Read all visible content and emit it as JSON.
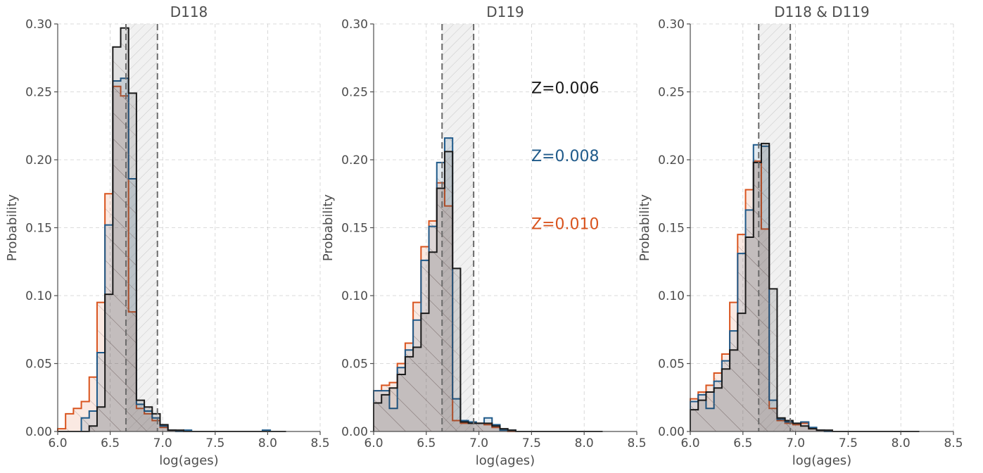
{
  "colors": {
    "z006": "#1a1a1a",
    "z008": "#1f5a8a",
    "z010": "#d9541e",
    "axis": "#4d4d4d",
    "grid": "#cfcfcf",
    "band": "#e6e6e6"
  },
  "chart_data": [
    {
      "type": "histogram",
      "title": "D118",
      "xlabel": "log(ages)",
      "ylabel": "Probability",
      "xlim": [
        6.0,
        8.5
      ],
      "ylim": [
        0.0,
        0.3
      ],
      "xticks": [
        "6.0",
        "6.5",
        "7.0",
        "7.5",
        "8.0",
        "8.5"
      ],
      "yticks": [
        "0.00",
        "0.05",
        "0.10",
        "0.15",
        "0.20",
        "0.25",
        "0.30"
      ],
      "grid": true,
      "band": [
        6.65,
        6.95
      ],
      "bin_edges": [
        6.0,
        6.075,
        6.15,
        6.225,
        6.3,
        6.375,
        6.45,
        6.525,
        6.6,
        6.675,
        6.75,
        6.825,
        6.9,
        6.975,
        7.05,
        7.125,
        7.2,
        7.275,
        7.35,
        7.425,
        7.5,
        7.575,
        7.65,
        7.725,
        7.8,
        7.875,
        7.95,
        8.025,
        8.1,
        8.175
      ],
      "series": [
        {
          "name": "Z=0.010",
          "color_key": "z010",
          "values": [
            0.002,
            0.013,
            0.017,
            0.022,
            0.04,
            0.095,
            0.175,
            0.254,
            0.247,
            0.088,
            0.017,
            0.013,
            0.008,
            0.003,
            0.001,
            0.0,
            0.0,
            0.0,
            0.0,
            0.0,
            0.0,
            0.0,
            0.0,
            0.0,
            0.0,
            0.0,
            0.0,
            0.0,
            0.0
          ]
        },
        {
          "name": "Z=0.008",
          "color_key": "z008",
          "values": [
            0.0,
            0.0,
            0.0,
            0.01,
            0.015,
            0.058,
            0.152,
            0.258,
            0.26,
            0.186,
            0.02,
            0.015,
            0.01,
            0.004,
            0.001,
            0.0,
            0.001,
            0.0,
            0.0,
            0.0,
            0.0,
            0.0,
            0.0,
            0.0,
            0.0,
            0.0,
            0.001,
            0.0,
            0.0
          ]
        },
        {
          "name": "Z=0.006",
          "color_key": "z006",
          "values": [
            0.0,
            0.0,
            0.0,
            0.0,
            0.004,
            0.018,
            0.101,
            0.283,
            0.297,
            0.249,
            0.023,
            0.018,
            0.013,
            0.005,
            0.001,
            0.001,
            0.0,
            0.0,
            0.0,
            0.0,
            0.0,
            0.0,
            0.0,
            0.0,
            0.0,
            0.0,
            0.0,
            0.0,
            0.0
          ]
        }
      ]
    },
    {
      "type": "histogram",
      "title": "D119",
      "xlabel": "log(ages)",
      "ylabel": "Probability",
      "xlim": [
        6.0,
        8.5
      ],
      "ylim": [
        0.0,
        0.3
      ],
      "xticks": [
        "6.0",
        "6.5",
        "7.0",
        "7.5",
        "8.0",
        "8.5"
      ],
      "yticks": [
        "0.00",
        "0.05",
        "0.10",
        "0.15",
        "0.20",
        "0.25",
        "0.30"
      ],
      "grid": true,
      "band": [
        6.65,
        6.95
      ],
      "legend": [
        {
          "text": "Z=0.006",
          "color_key": "z006"
        },
        {
          "text": "Z=0.008",
          "color_key": "z008"
        },
        {
          "text": "Z=0.010",
          "color_key": "z010"
        }
      ],
      "bin_edges": [
        6.0,
        6.075,
        6.15,
        6.225,
        6.3,
        6.375,
        6.45,
        6.525,
        6.6,
        6.675,
        6.75,
        6.825,
        6.9,
        6.975,
        7.05,
        7.125,
        7.2,
        7.275,
        7.35,
        7.425,
        7.5,
        7.575,
        7.65,
        7.725,
        7.8,
        7.875,
        7.95,
        8.025,
        8.1,
        8.175
      ],
      "series": [
        {
          "name": "Z=0.010",
          "color_key": "z010",
          "values": [
            0.03,
            0.034,
            0.036,
            0.05,
            0.065,
            0.095,
            0.136,
            0.155,
            0.183,
            0.166,
            0.008,
            0.006,
            0.006,
            0.006,
            0.005,
            0.003,
            0.001,
            0.0,
            0.0,
            0.0,
            0.0,
            0.0,
            0.0,
            0.0,
            0.0,
            0.0,
            0.0,
            0.0,
            0.0
          ]
        },
        {
          "name": "Z=0.008",
          "color_key": "z008",
          "values": [
            0.03,
            0.03,
            0.017,
            0.047,
            0.06,
            0.082,
            0.126,
            0.151,
            0.198,
            0.216,
            0.024,
            0.008,
            0.007,
            0.006,
            0.01,
            0.005,
            0.001,
            0.001,
            0.0,
            0.0,
            0.0,
            0.0,
            0.0,
            0.0,
            0.0,
            0.0,
            0.0,
            0.0,
            0.0
          ]
        },
        {
          "name": "Z=0.006",
          "color_key": "z006",
          "values": [
            0.021,
            0.027,
            0.032,
            0.042,
            0.055,
            0.062,
            0.087,
            0.132,
            0.179,
            0.206,
            0.12,
            0.007,
            0.006,
            0.006,
            0.006,
            0.004,
            0.002,
            0.001,
            0.0,
            0.0,
            0.0,
            0.0,
            0.0,
            0.0,
            0.0,
            0.0,
            0.0,
            0.0,
            0.0
          ]
        }
      ]
    },
    {
      "type": "histogram",
      "title": "D118 & D119",
      "xlabel": "log(ages)",
      "ylabel": "Probability",
      "xlim": [
        6.0,
        8.5
      ],
      "ylim": [
        0.0,
        0.3
      ],
      "xticks": [
        "6.0",
        "6.5",
        "7.0",
        "7.5",
        "8.0",
        "8.5"
      ],
      "yticks": [
        "0.00",
        "0.05",
        "0.10",
        "0.15",
        "0.20",
        "0.25",
        "0.30"
      ],
      "grid": true,
      "band": [
        6.65,
        6.95
      ],
      "bin_edges": [
        6.0,
        6.075,
        6.15,
        6.225,
        6.3,
        6.375,
        6.45,
        6.525,
        6.6,
        6.675,
        6.75,
        6.825,
        6.9,
        6.975,
        7.05,
        7.125,
        7.2,
        7.275,
        7.35,
        7.425,
        7.5,
        7.575,
        7.65,
        7.725,
        7.8,
        7.875,
        7.95,
        8.025,
        8.1,
        8.175
      ],
      "series": [
        {
          "name": "Z=0.010",
          "color_key": "z010",
          "values": [
            0.024,
            0.029,
            0.034,
            0.043,
            0.057,
            0.095,
            0.145,
            0.178,
            0.199,
            0.149,
            0.017,
            0.008,
            0.006,
            0.005,
            0.006,
            0.002,
            0.001,
            0.0,
            0.0,
            0.0,
            0.0,
            0.0,
            0.0,
            0.0,
            0.0,
            0.0,
            0.0,
            0.0,
            0.0
          ]
        },
        {
          "name": "Z=0.008",
          "color_key": "z008",
          "values": [
            0.022,
            0.027,
            0.017,
            0.037,
            0.052,
            0.074,
            0.131,
            0.163,
            0.211,
            0.21,
            0.023,
            0.009,
            0.007,
            0.006,
            0.007,
            0.003,
            0.001,
            0.0,
            0.0,
            0.0,
            0.0,
            0.0,
            0.0,
            0.0,
            0.0,
            0.0,
            0.0,
            0.0,
            0.0
          ]
        },
        {
          "name": "Z=0.006",
          "color_key": "z006",
          "values": [
            0.016,
            0.023,
            0.029,
            0.032,
            0.046,
            0.06,
            0.087,
            0.143,
            0.198,
            0.212,
            0.105,
            0.01,
            0.008,
            0.006,
            0.004,
            0.002,
            0.001,
            0.001,
            0.0,
            0.0,
            0.0,
            0.0,
            0.0,
            0.0,
            0.0,
            0.0,
            0.0,
            0.0,
            0.0
          ]
        }
      ]
    }
  ]
}
